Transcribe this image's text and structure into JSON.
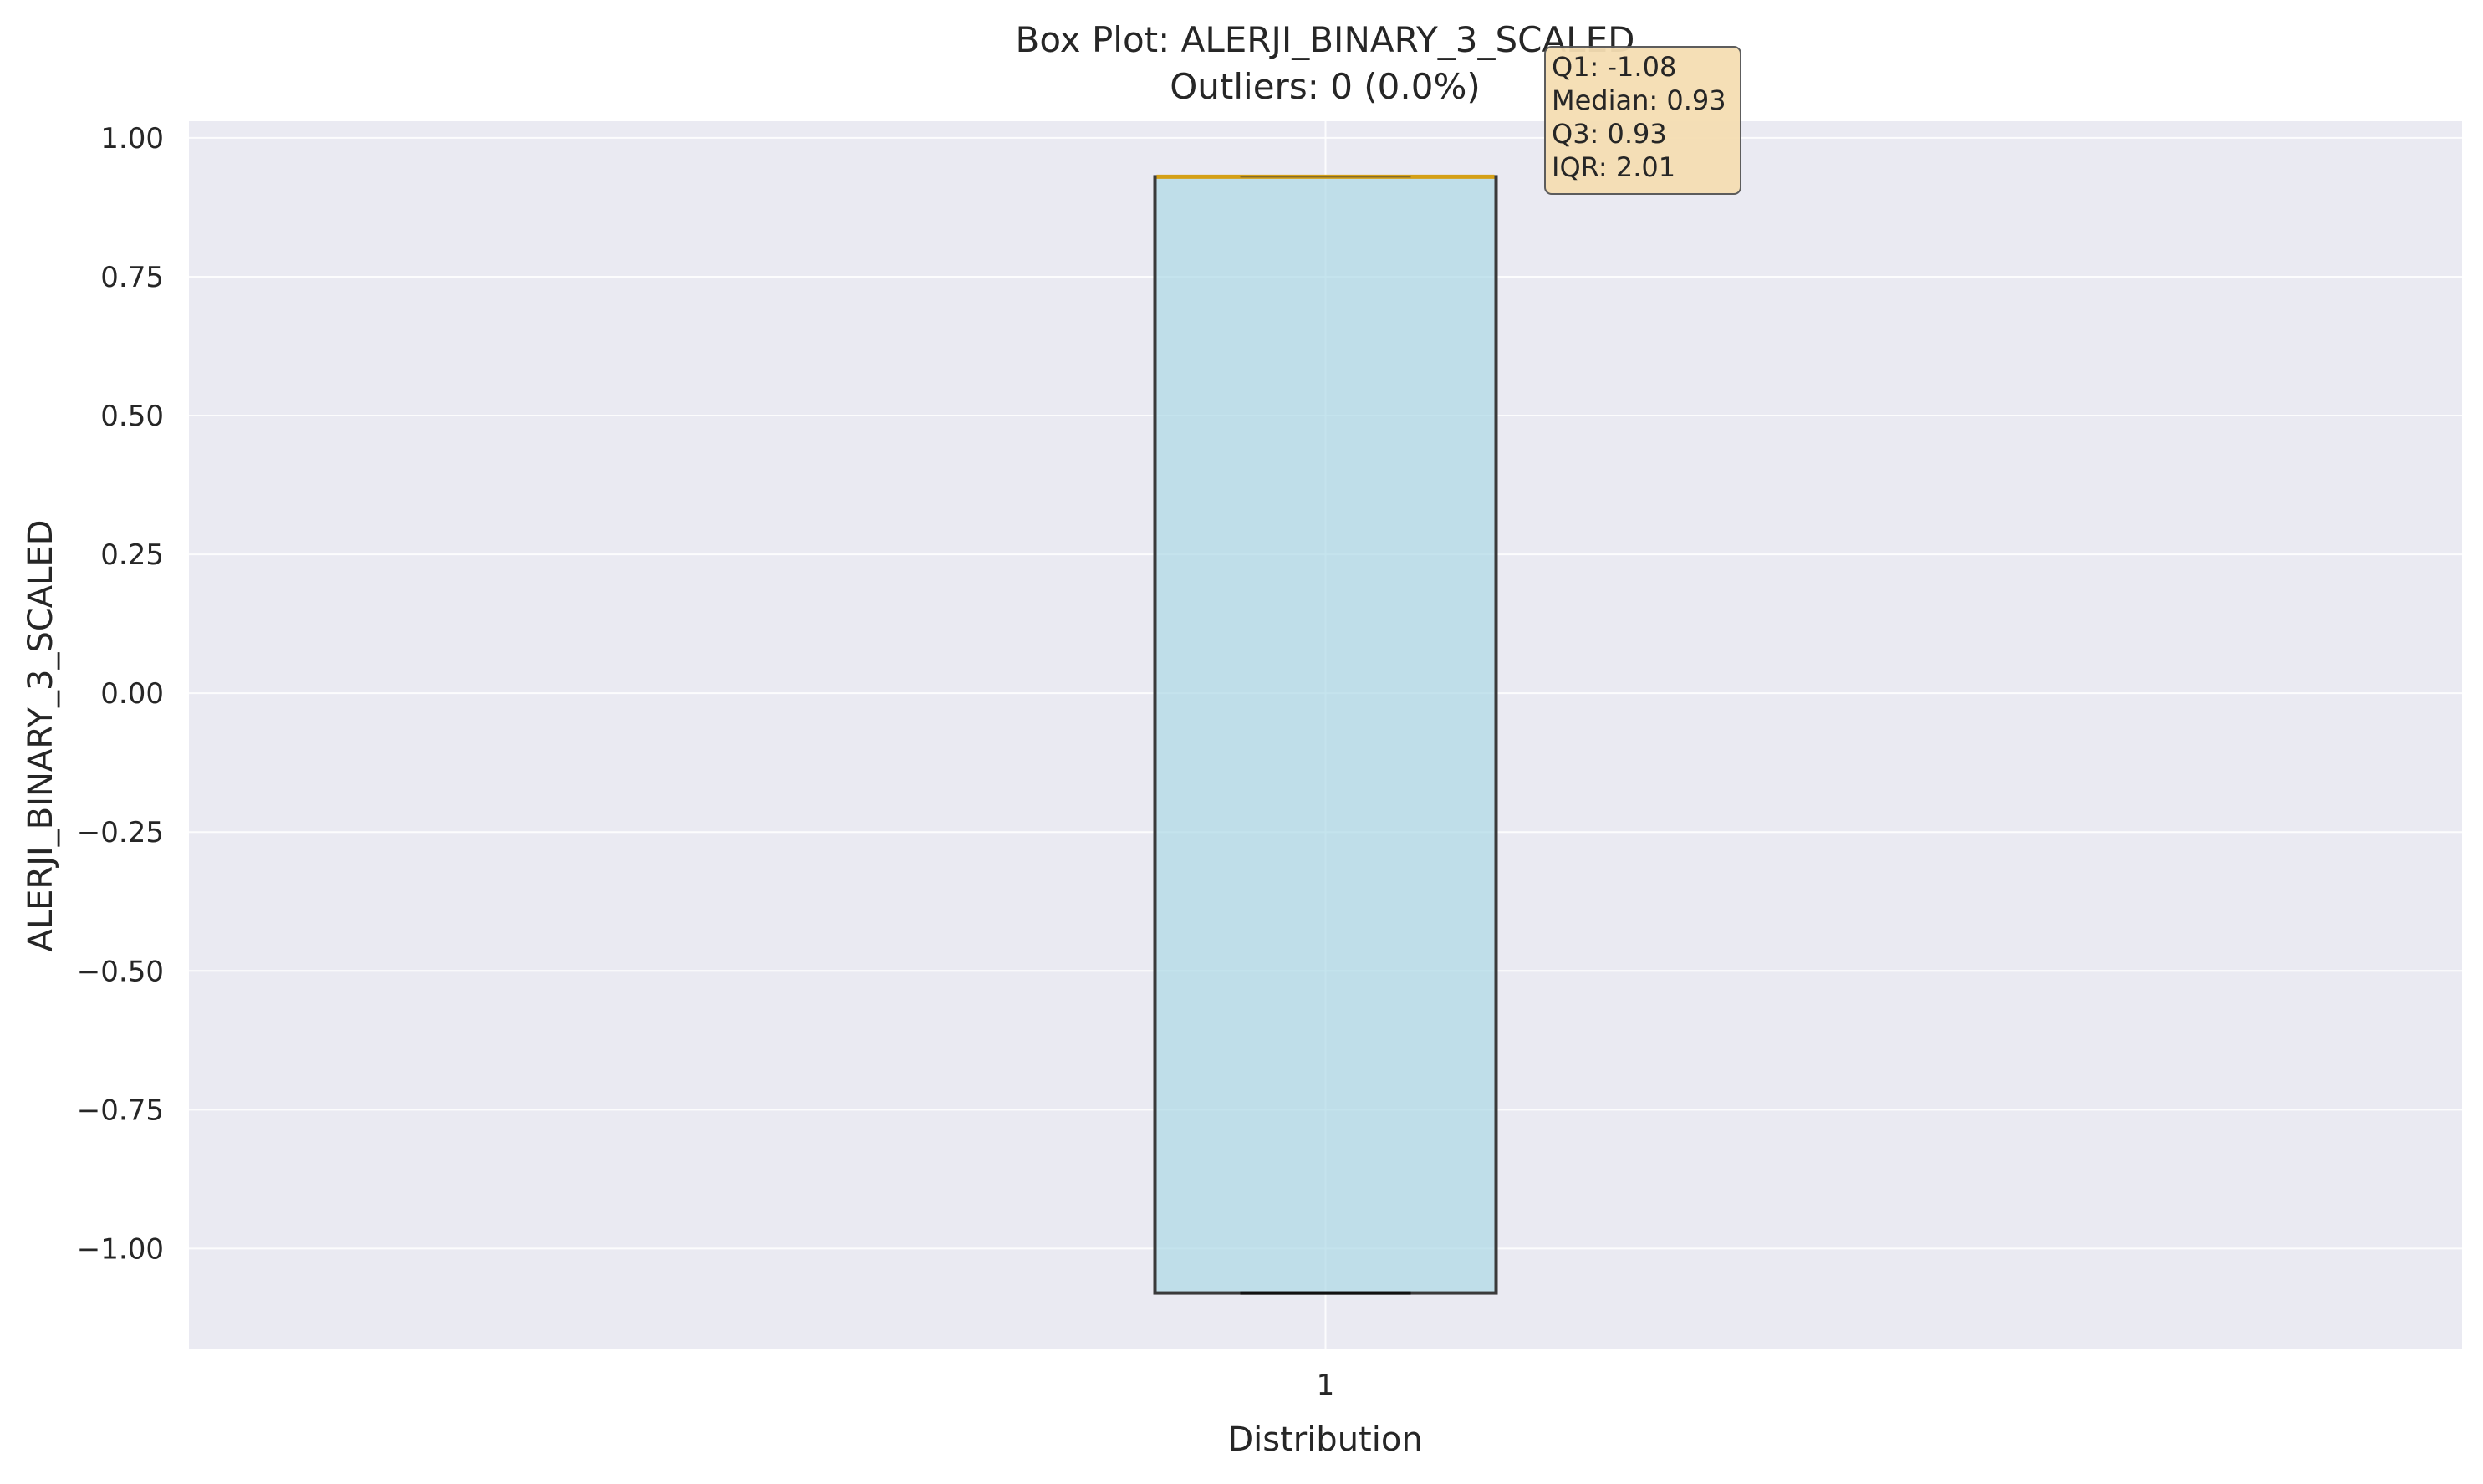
{
  "chart_data": {
    "type": "box",
    "title": "Box Plot: ALERJI_BINARY_3_SCALED",
    "subtitle": "Outliers: 0 (0.0%)",
    "xlabel": "Distribution",
    "ylabel": "ALERJI_BINARY_3_SCALED",
    "categories": [
      "1"
    ],
    "ylim": [
      -1.18,
      1.03
    ],
    "yticks": [
      -1.0,
      -0.75,
      -0.5,
      -0.25,
      0.0,
      0.25,
      0.5,
      0.75,
      1.0
    ],
    "ytick_labels": [
      "−1.00",
      "−0.75",
      "−0.50",
      "−0.25",
      "0.00",
      "0.25",
      "0.50",
      "0.75",
      "1.00"
    ],
    "series": [
      {
        "category": "1",
        "min": -1.08,
        "q1": -1.08,
        "median": 0.93,
        "q3": 0.93,
        "max": 0.93,
        "outliers": []
      }
    ],
    "stats_box": [
      "Q1: -1.08",
      "Median: 0.93",
      "Q3: 0.93",
      "IQR: 2.01"
    ],
    "grid": true,
    "colors": {
      "plot_background": "#eaeaf2",
      "grid": "#ffffff",
      "box_fill": "#add8e6",
      "box_edge": "#3a3a3a",
      "median": "#d4a017",
      "stats_box_fill": "#f5deb3",
      "stats_box_edge": "#555555"
    }
  }
}
